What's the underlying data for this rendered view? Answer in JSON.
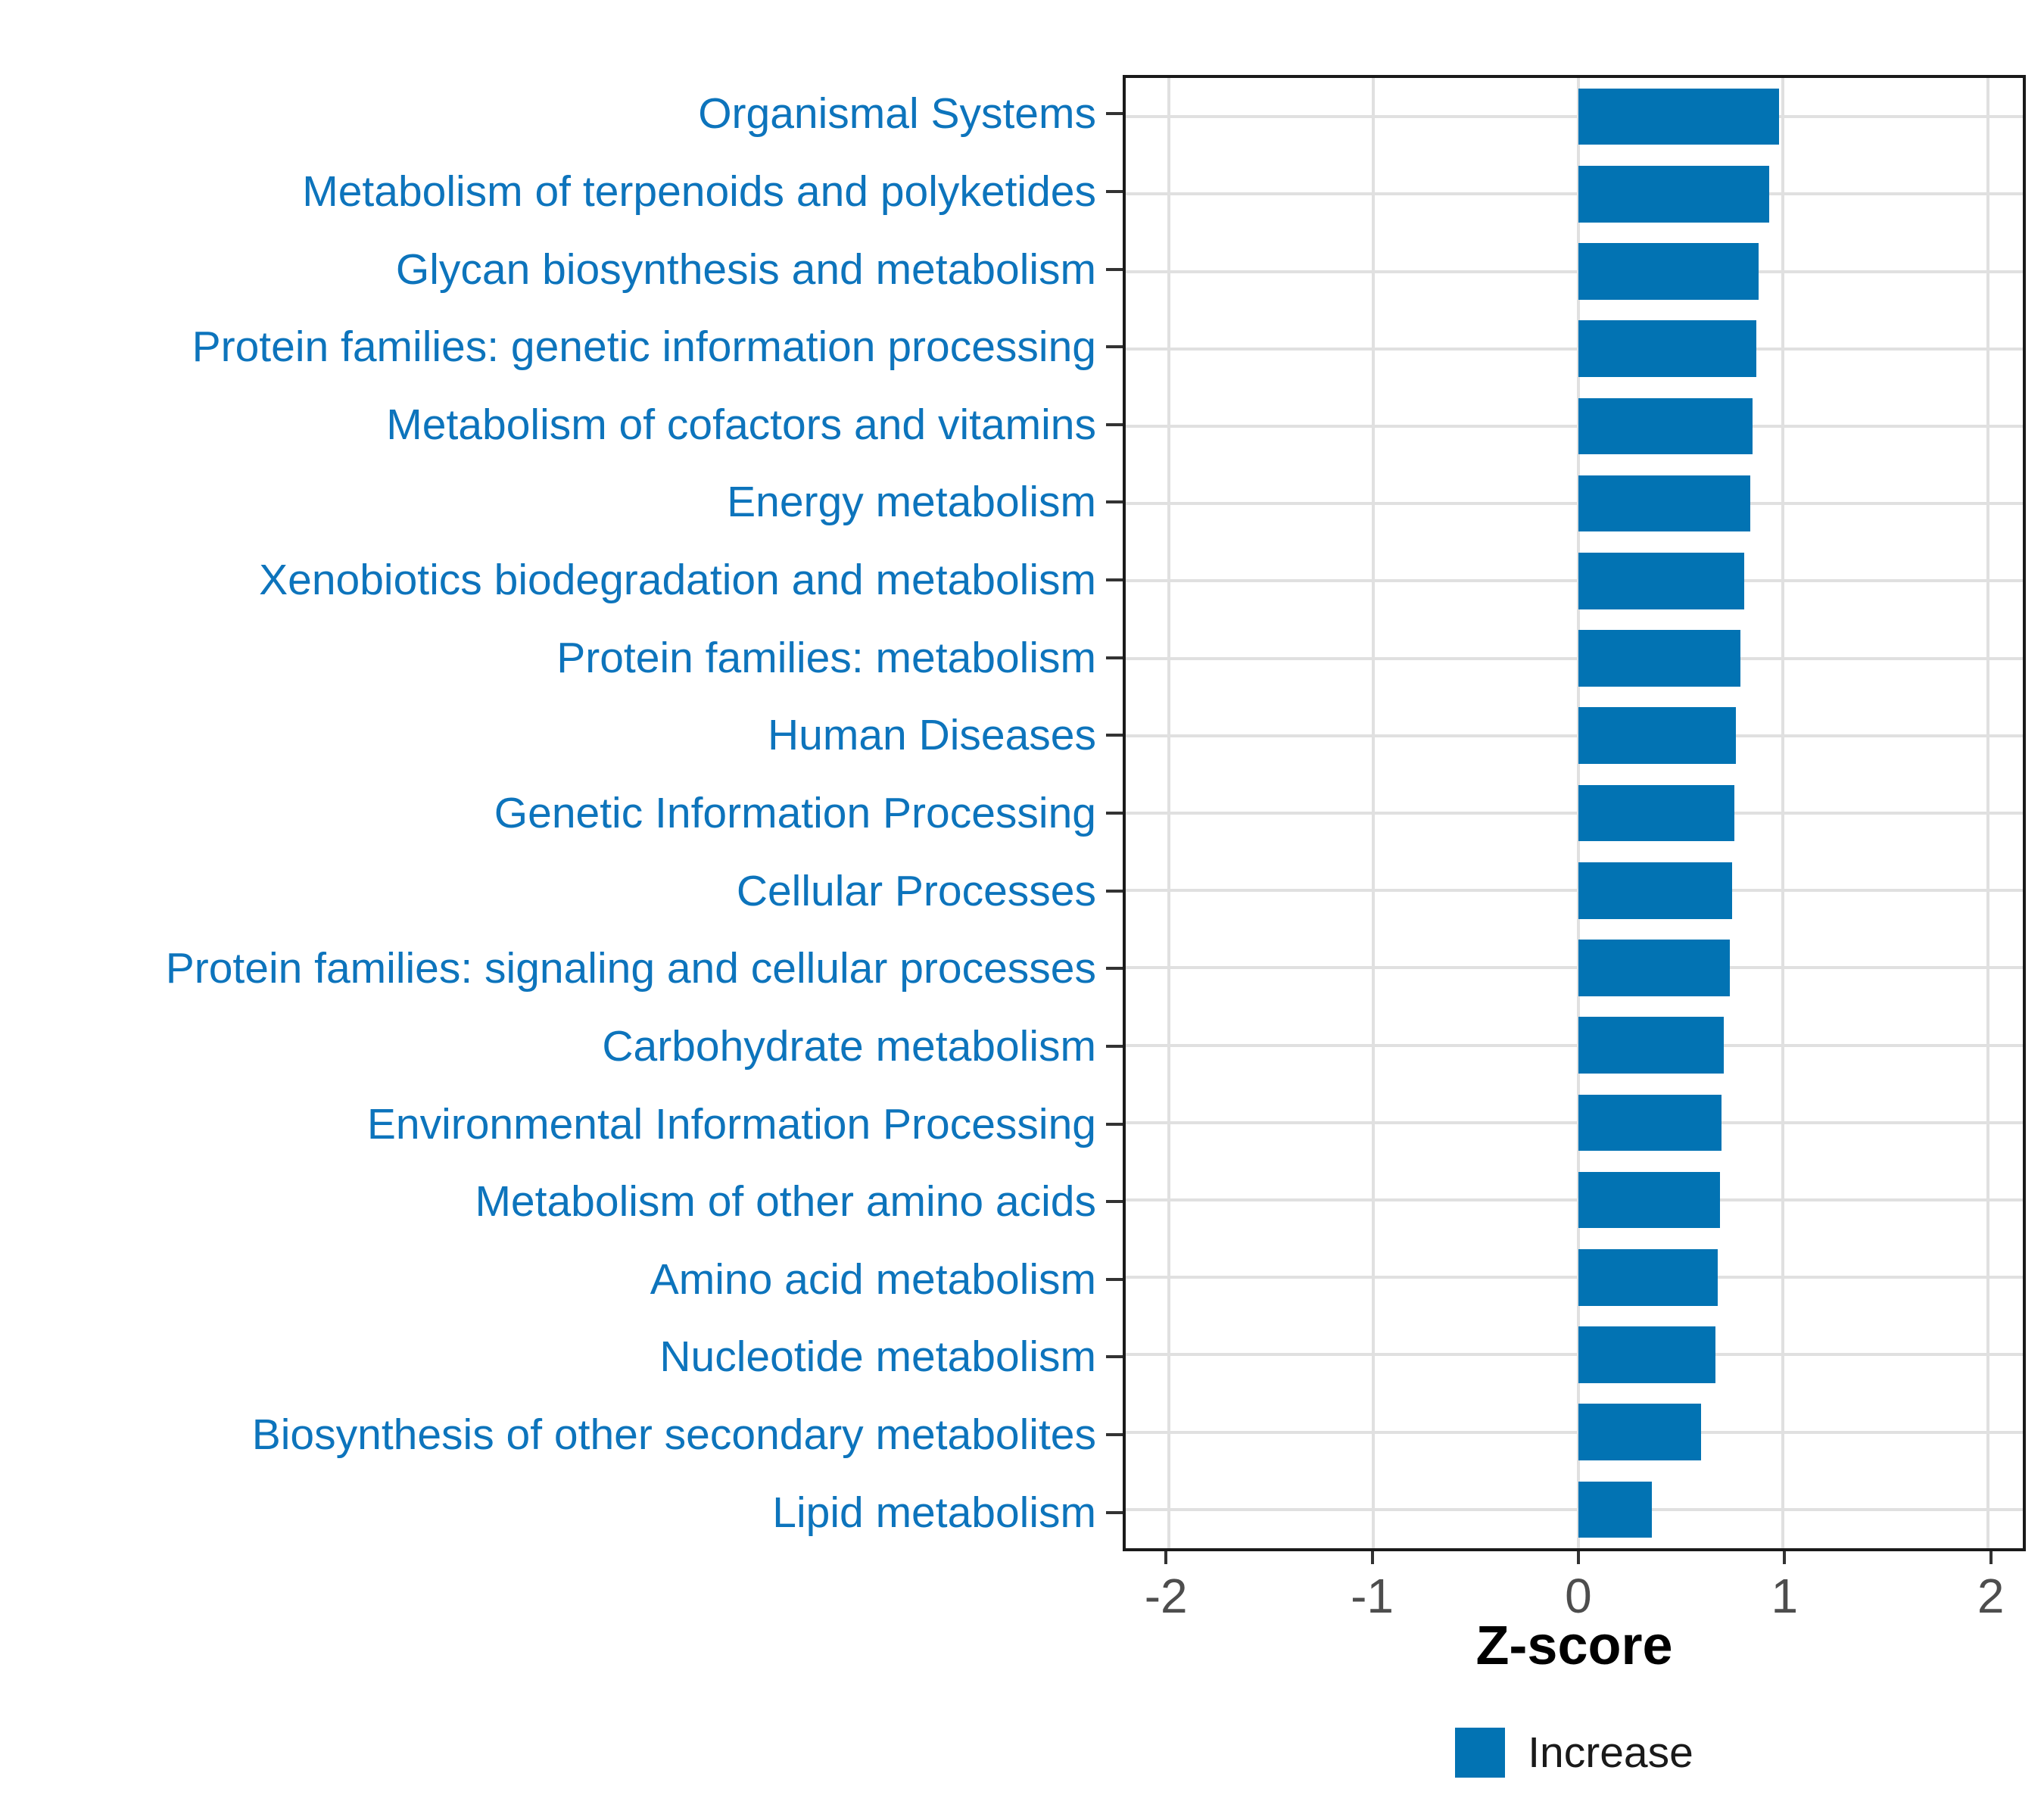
{
  "chart_data": {
    "type": "bar",
    "orientation": "horizontal",
    "title": "",
    "xlabel": "Z-score",
    "categories": [
      "Organismal Systems",
      "Metabolism of terpenoids and polyketides",
      "Glycan biosynthesis and metabolism",
      "Protein families: genetic information processing",
      "Metabolism of cofactors and vitamins",
      "Energy metabolism",
      "Xenobiotics biodegradation and metabolism",
      "Protein families: metabolism",
      "Human Diseases",
      "Genetic Information Processing",
      "Cellular Processes",
      "Protein families: signaling and cellular processes",
      "Carbohydrate metabolism",
      "Environmental Information Processing",
      "Metabolism of other amino acids",
      "Amino acid metabolism",
      "Nucleotide metabolism",
      "Biosynthesis of other secondary metabolites",
      "Lipid metabolism"
    ],
    "values": [
      0.98,
      0.93,
      0.88,
      0.87,
      0.85,
      0.84,
      0.81,
      0.79,
      0.77,
      0.76,
      0.75,
      0.74,
      0.71,
      0.7,
      0.69,
      0.68,
      0.67,
      0.6,
      0.36
    ],
    "x_ticks": [
      -2,
      -1,
      0,
      1,
      2
    ],
    "x_tick_labels": [
      "-2",
      "-1",
      "0",
      "1",
      "2"
    ],
    "xlim": [
      -2.21,
      2.17
    ],
    "grid": "major-vertical-and-category-horizontal",
    "legend": {
      "position": "bottom-center",
      "items": [
        {
          "label": "Increase",
          "color": "#0273B3"
        }
      ]
    }
  },
  "colors": {
    "bar": "#0273B3",
    "category_label": "#0D74BC",
    "axis_text": "#4D4D4D",
    "grid": "#E0E0E0",
    "panel_border": "#1A1A1A",
    "tick": "#333333",
    "background": "#FFFFFF"
  }
}
